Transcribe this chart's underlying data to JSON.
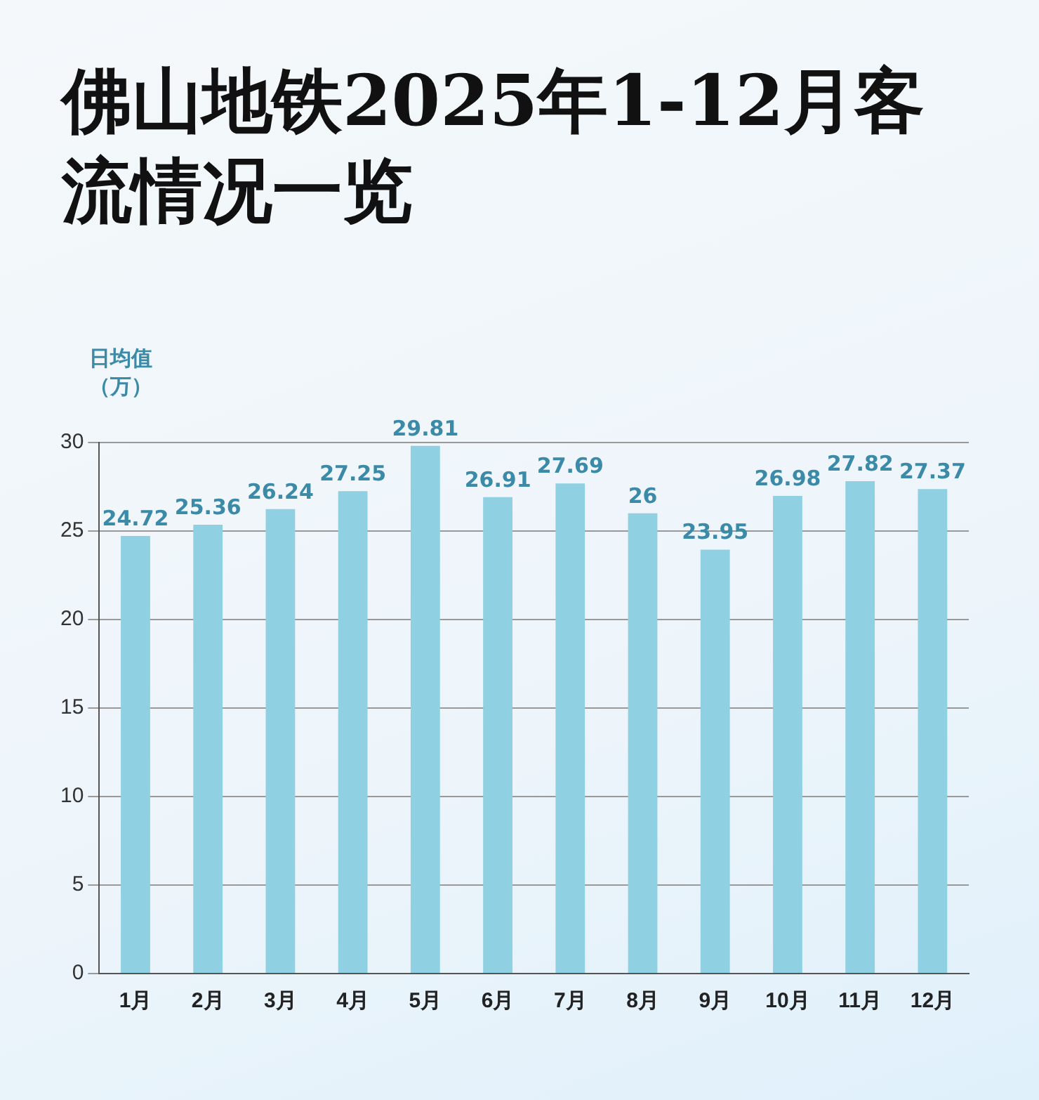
{
  "chart_data": {
    "type": "bar",
    "title": "佛山地铁2025年1-12月客流情况一览",
    "ylabel": "日均值（万）",
    "categories": [
      "1月",
      "2月",
      "3月",
      "4月",
      "5月",
      "6月",
      "7月",
      "8月",
      "9月",
      "10月",
      "11月",
      "12月"
    ],
    "values": [
      24.72,
      25.36,
      26.24,
      27.25,
      29.81,
      26.91,
      27.69,
      26,
      23.95,
      26.98,
      27.82,
      27.37
    ],
    "color": "#8fd0e2",
    "ylim": [
      0,
      30
    ],
    "yticks": [
      0,
      5,
      10,
      15,
      20,
      25,
      30
    ],
    "grid": "y",
    "data_labels": true
  }
}
